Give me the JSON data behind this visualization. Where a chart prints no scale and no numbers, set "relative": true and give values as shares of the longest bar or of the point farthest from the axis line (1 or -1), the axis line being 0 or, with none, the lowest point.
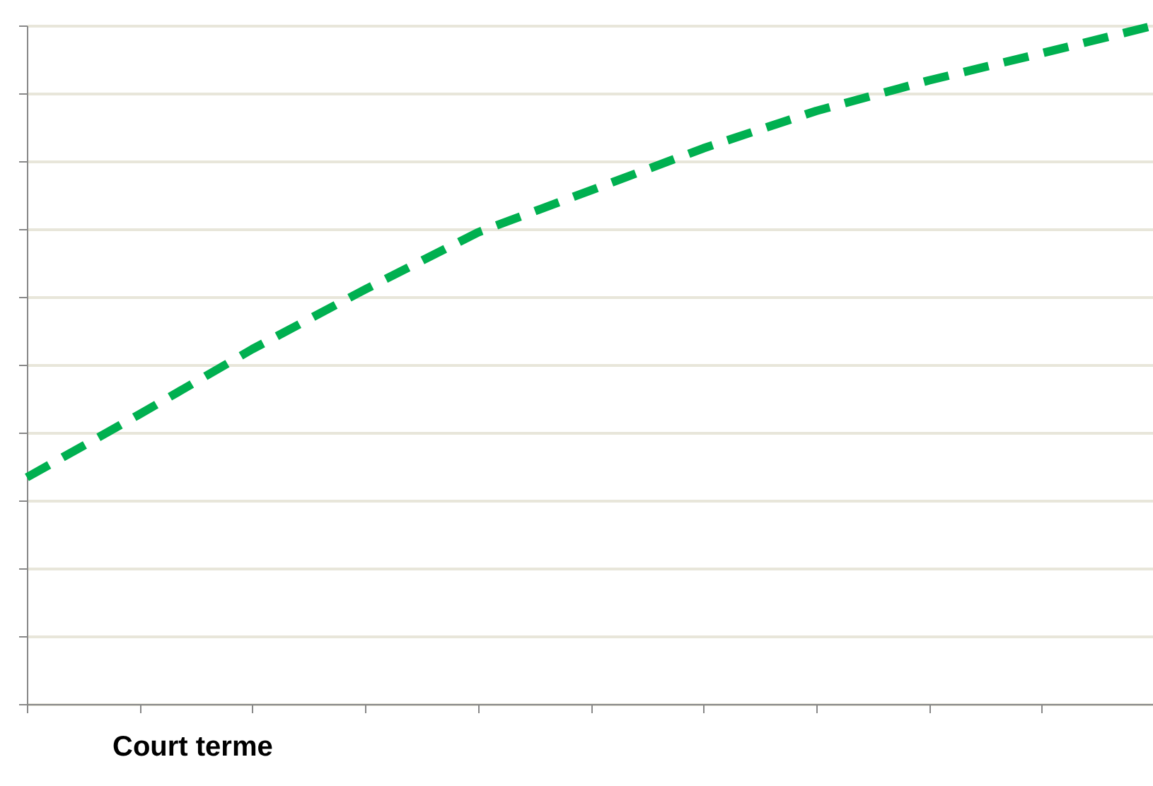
{
  "chart_data": {
    "type": "line",
    "relative": true,
    "xlabel": "Court terme",
    "categories": [
      null,
      null,
      null,
      null,
      null,
      null,
      null,
      null,
      null,
      null,
      null
    ],
    "series": [
      {
        "color": "#00b050",
        "values": [
          0.334,
          0.427,
          0.523,
          0.611,
          0.695,
          0.757,
          0.819,
          0.874,
          0.919,
          0.959,
          1
        ]
      }
    ],
    "grid": "y",
    "line_style": "dashed",
    "marker": "none"
  }
}
